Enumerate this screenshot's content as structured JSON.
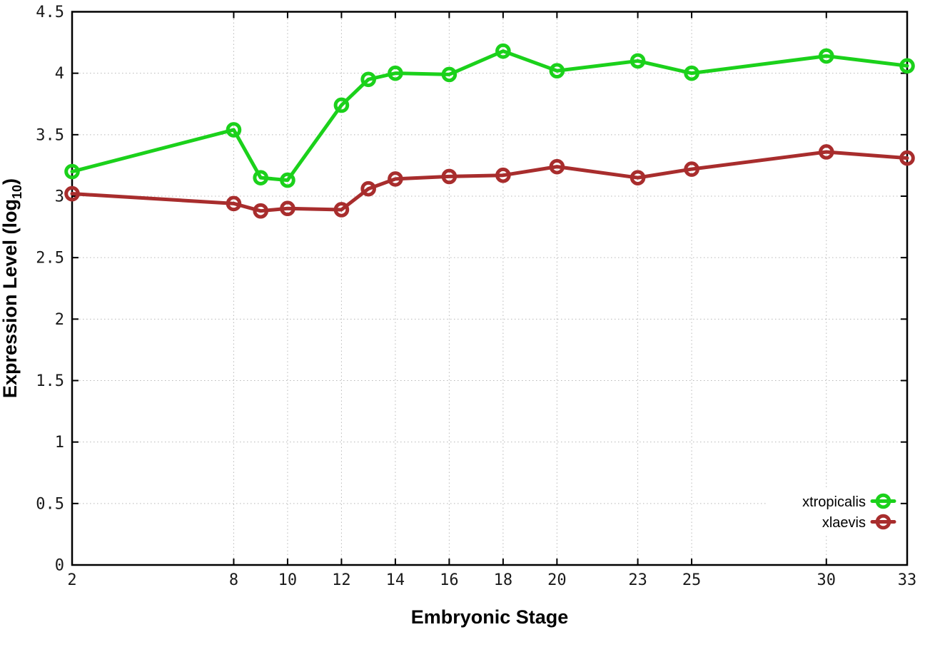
{
  "chart_data": {
    "type": "line",
    "title": "",
    "xlabel": "Embryonic Stage",
    "ylabel": "Expression Level (log10)",
    "ylabel_parts": {
      "prefix": "Expression Level (log",
      "sub": "10",
      "suffix": ")"
    },
    "xlim": [
      2,
      33
    ],
    "ylim": [
      0,
      4.5
    ],
    "xticks": [
      2,
      8,
      10,
      12,
      14,
      16,
      18,
      20,
      23,
      25,
      30,
      33
    ],
    "yticks": [
      0,
      0.5,
      1,
      1.5,
      2,
      2.5,
      3,
      3.5,
      4,
      4.5
    ],
    "grid": true,
    "legend_position": "inside-bottom-right",
    "x": [
      2,
      8,
      9,
      10,
      12,
      13,
      14,
      16,
      18,
      20,
      23,
      25,
      30,
      33
    ],
    "series": [
      {
        "name": "xtropicalis",
        "color": "#1bd11b",
        "values": [
          3.2,
          3.54,
          3.15,
          3.13,
          3.74,
          3.95,
          4.0,
          3.99,
          4.18,
          4.02,
          4.1,
          4.0,
          4.14,
          4.06
        ]
      },
      {
        "name": "xlaevis",
        "color": "#a82d2d",
        "values": [
          3.02,
          2.94,
          2.88,
          2.9,
          2.89,
          3.06,
          3.14,
          3.16,
          3.17,
          3.24,
          3.15,
          3.22,
          3.36,
          3.31
        ]
      }
    ],
    "colors": {
      "grid": "#b8b8b8",
      "border": "#000000",
      "tick_label": "#1a1a1a",
      "background": "#ffffff"
    }
  }
}
